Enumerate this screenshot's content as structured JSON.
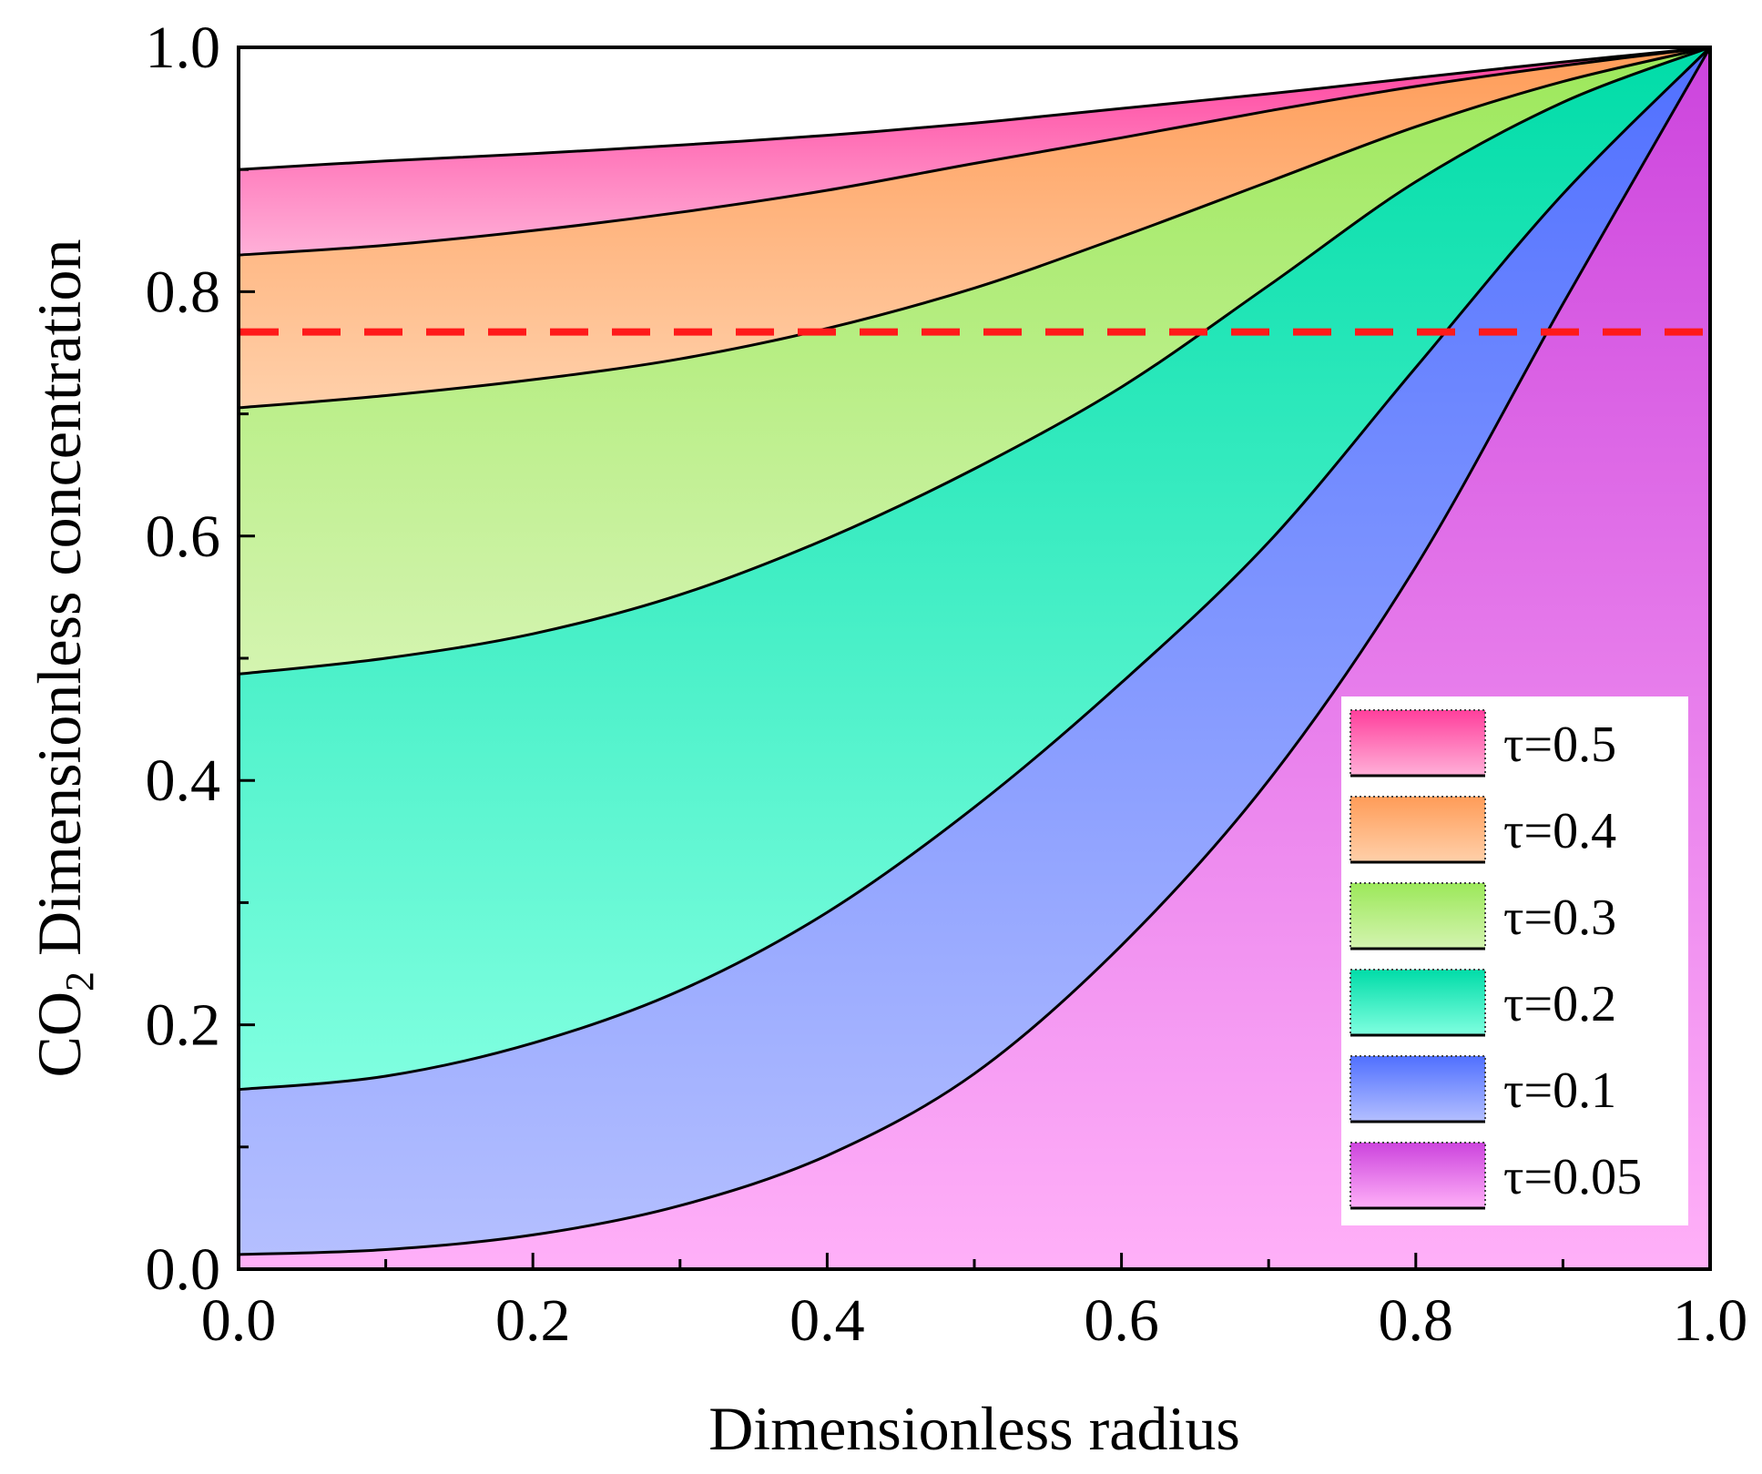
{
  "chart_data": {
    "type": "area",
    "xlabel": "Dimensionless radius",
    "ylabel_main": "CO",
    "ylabel_sub": "2",
    "ylabel_rest": " Dimensionless concentration",
    "xlim": [
      0.0,
      1.0
    ],
    "ylim": [
      0.0,
      1.0
    ],
    "xticks": [
      "0.0",
      "0.2",
      "0.4",
      "0.6",
      "0.8",
      "1.0"
    ],
    "yticks": [
      "0.0",
      "0.2",
      "0.4",
      "0.6",
      "0.8",
      "1.0"
    ],
    "grid": false,
    "legend_position": "bottom-right",
    "reference_line": {
      "y": 0.767,
      "color": "#ff1a1a",
      "style": "dashed"
    },
    "x": [
      0.0,
      0.1,
      0.2,
      0.3,
      0.4,
      0.5,
      0.6,
      0.7,
      0.8,
      0.9,
      1.0
    ],
    "series": [
      {
        "name": "τ=0.5",
        "label": "τ=0.5",
        "colors": [
          "#ff3f9c",
          "#ffb0d8"
        ],
        "values": [
          0.9,
          0.907,
          0.913,
          0.92,
          0.928,
          0.938,
          0.95,
          0.962,
          0.975,
          0.988,
          1.0
        ]
      },
      {
        "name": "τ=0.4",
        "label": "τ=0.4",
        "colors": [
          "#ff9c58",
          "#ffd0aa"
        ],
        "values": [
          0.83,
          0.838,
          0.85,
          0.865,
          0.883,
          0.905,
          0.926,
          0.948,
          0.968,
          0.985,
          1.0
        ]
      },
      {
        "name": "τ=0.3",
        "label": "τ=0.3",
        "colors": [
          "#9ce85a",
          "#d4f4b0"
        ],
        "values": [
          0.705,
          0.715,
          0.728,
          0.745,
          0.77,
          0.803,
          0.845,
          0.89,
          0.935,
          0.972,
          1.0
        ]
      },
      {
        "name": "τ=0.2",
        "label": "τ=0.2",
        "colors": [
          "#00dca8",
          "#80ffe0"
        ],
        "values": [
          0.487,
          0.5,
          0.52,
          0.552,
          0.598,
          0.655,
          0.722,
          0.805,
          0.89,
          0.955,
          1.0
        ]
      },
      {
        "name": "τ=0.1",
        "label": "τ=0.1",
        "colors": [
          "#5070ff",
          "#b4bfff"
        ],
        "values": [
          0.147,
          0.158,
          0.185,
          0.228,
          0.292,
          0.378,
          0.48,
          0.595,
          0.738,
          0.88,
          1.0
        ]
      },
      {
        "name": "τ=0.05",
        "label": "τ=0.05",
        "colors": [
          "#cc44dd",
          "#ffb0f8"
        ],
        "values": [
          0.012,
          0.016,
          0.028,
          0.052,
          0.093,
          0.16,
          0.265,
          0.4,
          0.575,
          0.79,
          1.0
        ]
      }
    ]
  }
}
